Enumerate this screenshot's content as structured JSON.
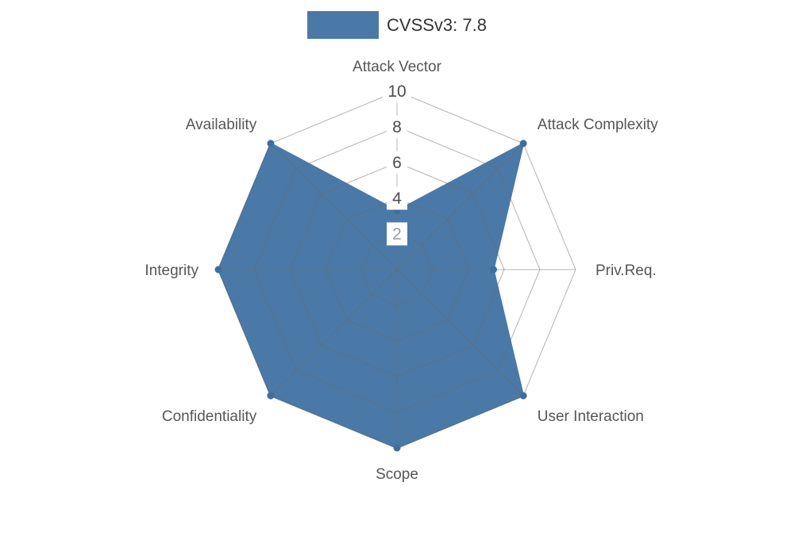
{
  "legend": {
    "label": "CVSSv3: 7.8"
  },
  "chart_data": {
    "type": "radar",
    "title": "CVSSv3: 7.8",
    "categories": [
      "Attack Vector",
      "Attack Complexity",
      "Priv.Req.",
      "User Interaction",
      "Scope",
      "Confidentiality",
      "Integrity",
      "Availability"
    ],
    "series": [
      {
        "name": "CVSSv3: 7.8",
        "values": [
          3.3,
          10,
          5.4,
          10,
          10,
          10,
          10,
          10
        ]
      }
    ],
    "ticks": [
      {
        "value": 2,
        "color": "#9b9b9b"
      },
      {
        "value": 4,
        "color": "#4c4c4c"
      },
      {
        "value": 6,
        "color": "#4c4c4c"
      },
      {
        "value": 8,
        "color": "#4c4c4c"
      },
      {
        "value": 10,
        "color": "#4c4c4c"
      }
    ],
    "rlim": [
      0,
      10
    ],
    "grid": true,
    "legend_position": "top",
    "colors": {
      "fill": "#4a79a7",
      "stroke": "#4a79a7",
      "point": "#3f6e9e",
      "grid": "rgba(105,105,105,0.5)",
      "axis_label": "#565656",
      "tick_backdrop": "#ffffff",
      "legend_text": "#333333"
    }
  }
}
